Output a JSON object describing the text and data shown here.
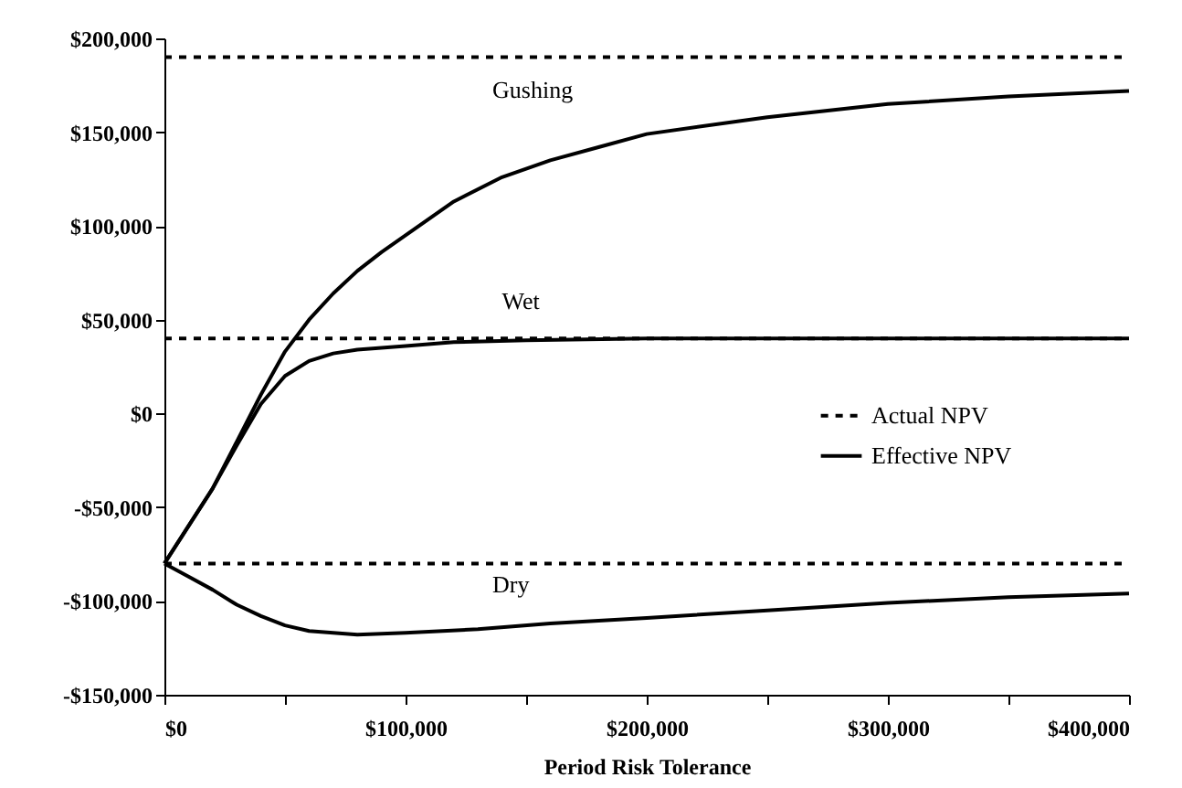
{
  "chart_data": {
    "type": "line",
    "xlabel": "Period Risk Tolerance",
    "xlim": [
      0,
      400000
    ],
    "ylim": [
      -150000,
      200000
    ],
    "xticks": [
      {
        "value": 0,
        "label": "$0"
      },
      {
        "value": 50000,
        "label": null
      },
      {
        "value": 100000,
        "label": "$100,000"
      },
      {
        "value": 150000,
        "label": null
      },
      {
        "value": 200000,
        "label": "$200,000"
      },
      {
        "value": 250000,
        "label": null
      },
      {
        "value": 300000,
        "label": "$300,000"
      },
      {
        "value": 350000,
        "label": null
      },
      {
        "value": 400000,
        "label": "$400,000"
      }
    ],
    "yticks": [
      {
        "value": -150000,
        "label": "-$150,000"
      },
      {
        "value": -100000,
        "label": "-$100,000"
      },
      {
        "value": -50000,
        "label": "-$50,000"
      },
      {
        "value": 0,
        "label": "$0"
      },
      {
        "value": 50000,
        "label": "$50,000"
      },
      {
        "value": 100000,
        "label": "$100,000"
      },
      {
        "value": 150000,
        "label": "$150,000"
      },
      {
        "value": 200000,
        "label": "$200,000"
      }
    ],
    "grid": false,
    "legend": "right",
    "marker": "none",
    "series": [
      {
        "name": "Actual NPV",
        "color": "#000000",
        "line_style": "dashed",
        "x": [
          0,
          400000
        ],
        "values": [
          190000,
          190000
        ]
      },
      {
        "color": "#000000",
        "line_style": "dashed",
        "x": [
          0,
          400000
        ],
        "values": [
          40000,
          40000
        ]
      },
      {
        "color": "#000000",
        "line_style": "dashed",
        "x": [
          0,
          400000
        ],
        "values": [
          -80000,
          -80000
        ]
      },
      {
        "name": "Effective NPV",
        "color": "#000000",
        "line_style": "solid",
        "x": [
          0,
          10000,
          20000,
          30000,
          40000,
          50000,
          60000,
          70000,
          80000,
          90000,
          100000,
          120000,
          140000,
          160000,
          180000,
          200000,
          250000,
          300000,
          350000,
          400000
        ],
        "values": [
          -80000,
          -60000,
          -40000,
          -15000,
          10000,
          33000,
          50000,
          64000,
          76000,
          86000,
          95000,
          113000,
          126000,
          135000,
          142000,
          149000,
          158000,
          165000,
          169000,
          172000
        ]
      },
      {
        "color": "#000000",
        "line_style": "solid",
        "x": [
          0,
          10000,
          20000,
          30000,
          40000,
          50000,
          60000,
          70000,
          80000,
          100000,
          120000,
          150000,
          200000,
          300000,
          400000
        ],
        "values": [
          -80000,
          -60000,
          -40000,
          -17000,
          5000,
          20000,
          28000,
          32000,
          34000,
          36000,
          38000,
          39000,
          40000,
          40000,
          40000
        ]
      },
      {
        "color": "#000000",
        "line_style": "solid",
        "x": [
          0,
          10000,
          20000,
          30000,
          40000,
          50000,
          60000,
          80000,
          100000,
          130000,
          160000,
          200000,
          250000,
          300000,
          350000,
          400000
        ],
        "values": [
          -80000,
          -87000,
          -94000,
          -102000,
          -108000,
          -113000,
          -116000,
          -118000,
          -117000,
          -115000,
          -112000,
          -109000,
          -105000,
          -101000,
          -98000,
          -96000
        ]
      }
    ],
    "annotations": [
      "Gushing",
      "Wet",
      "Dry"
    ]
  }
}
